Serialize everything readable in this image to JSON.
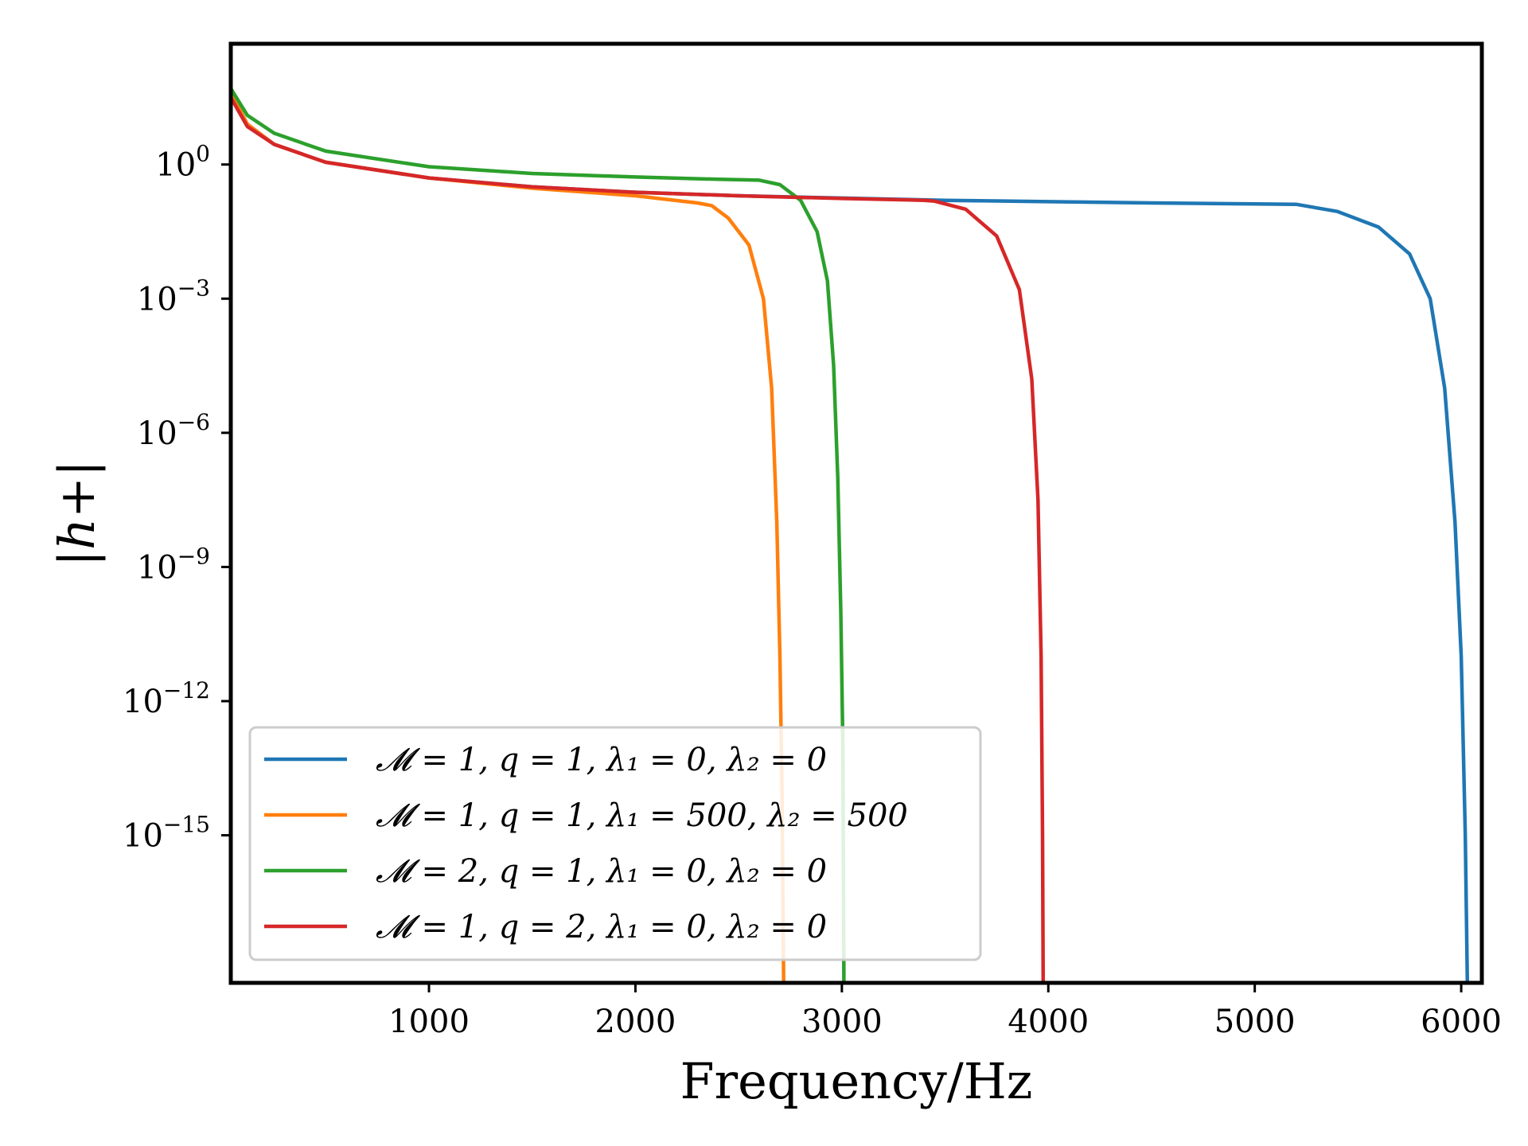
{
  "chart_data": {
    "type": "line",
    "title": "",
    "xlabel": "Frequency/Hz",
    "ylabel": "|h+|",
    "xlim": [
      40,
      6100
    ],
    "ylim_log10": [
      -18.3,
      2.7
    ],
    "yscale": "log",
    "grid": false,
    "legend_position": "lower-left",
    "x_ticks": [
      {
        "value": 1000,
        "label": "1000"
      },
      {
        "value": 2000,
        "label": "2000"
      },
      {
        "value": 3000,
        "label": "3000"
      },
      {
        "value": 4000,
        "label": "4000"
      },
      {
        "value": 5000,
        "label": "5000"
      },
      {
        "value": 6000,
        "label": "6000"
      }
    ],
    "y_ticks": [
      {
        "exp": 0,
        "base": "10",
        "sup": "0"
      },
      {
        "exp": -3,
        "base": "10",
        "sup": "−3"
      },
      {
        "exp": -6,
        "base": "10",
        "sup": "−6"
      },
      {
        "exp": -9,
        "base": "10",
        "sup": "−9"
      },
      {
        "exp": -12,
        "base": "10",
        "sup": "−12"
      },
      {
        "exp": -15,
        "base": "10",
        "sup": "−15"
      }
    ],
    "series": [
      {
        "name": "𝓜 = 1, q = 1, λ₁ = 0, λ₂ = 0",
        "color": "#1f77b4",
        "points_log10": [
          [
            40,
            1.6
          ],
          [
            120,
            0.9
          ],
          [
            250,
            0.45
          ],
          [
            500,
            0.05
          ],
          [
            1000,
            -0.3
          ],
          [
            1500,
            -0.5
          ],
          [
            2000,
            -0.62
          ],
          [
            2500,
            -0.7
          ],
          [
            3000,
            -0.75
          ],
          [
            3500,
            -0.8
          ],
          [
            4000,
            -0.83
          ],
          [
            4500,
            -0.86
          ],
          [
            5000,
            -0.88
          ],
          [
            5200,
            -0.89
          ],
          [
            5400,
            -1.05
          ],
          [
            5600,
            -1.4
          ],
          [
            5750,
            -2.0
          ],
          [
            5850,
            -3.0
          ],
          [
            5920,
            -5.0
          ],
          [
            5970,
            -8.0
          ],
          [
            6000,
            -11.0
          ],
          [
            6020,
            -15.0
          ],
          [
            6030,
            -18.3
          ]
        ]
      },
      {
        "name": "𝓜 = 1, q = 1, λ₁ = 500, λ₂ = 500",
        "color": "#ff7f0e",
        "points_log10": [
          [
            40,
            1.6
          ],
          [
            120,
            0.9
          ],
          [
            250,
            0.45
          ],
          [
            500,
            0.05
          ],
          [
            1000,
            -0.3
          ],
          [
            1500,
            -0.53
          ],
          [
            2000,
            -0.7
          ],
          [
            2300,
            -0.86
          ],
          [
            2370,
            -0.92
          ],
          [
            2450,
            -1.2
          ],
          [
            2550,
            -1.8
          ],
          [
            2620,
            -3.0
          ],
          [
            2660,
            -5.0
          ],
          [
            2685,
            -8.0
          ],
          [
            2700,
            -11.0
          ],
          [
            2710,
            -14.0
          ],
          [
            2718,
            -18.3
          ]
        ]
      },
      {
        "name": "𝓜 = 2, q = 1, λ₁ = 0, λ₂ = 0",
        "color": "#2ca02c",
        "points_log10": [
          [
            40,
            1.7
          ],
          [
            120,
            1.1
          ],
          [
            250,
            0.7
          ],
          [
            500,
            0.3
          ],
          [
            1000,
            -0.05
          ],
          [
            1500,
            -0.2
          ],
          [
            2000,
            -0.28
          ],
          [
            2400,
            -0.33
          ],
          [
            2600,
            -0.35
          ],
          [
            2700,
            -0.45
          ],
          [
            2800,
            -0.8
          ],
          [
            2880,
            -1.5
          ],
          [
            2930,
            -2.6
          ],
          [
            2960,
            -4.5
          ],
          [
            2980,
            -7.0
          ],
          [
            2995,
            -10.0
          ],
          [
            3005,
            -13.0
          ],
          [
            3010,
            -18.3
          ]
        ]
      },
      {
        "name": "𝓜 = 1, q = 2, λ₁ = 0, λ₂ = 0",
        "color": "#d62728",
        "points_log10": [
          [
            40,
            1.5
          ],
          [
            120,
            0.85
          ],
          [
            250,
            0.45
          ],
          [
            500,
            0.05
          ],
          [
            1000,
            -0.3
          ],
          [
            1500,
            -0.5
          ],
          [
            2000,
            -0.62
          ],
          [
            2500,
            -0.7
          ],
          [
            3000,
            -0.76
          ],
          [
            3400,
            -0.8
          ],
          [
            3450,
            -0.82
          ],
          [
            3600,
            -1.0
          ],
          [
            3750,
            -1.6
          ],
          [
            3860,
            -2.8
          ],
          [
            3920,
            -4.8
          ],
          [
            3950,
            -7.5
          ],
          [
            3965,
            -11.0
          ],
          [
            3972,
            -15.0
          ],
          [
            3975,
            -18.3
          ]
        ]
      }
    ]
  }
}
